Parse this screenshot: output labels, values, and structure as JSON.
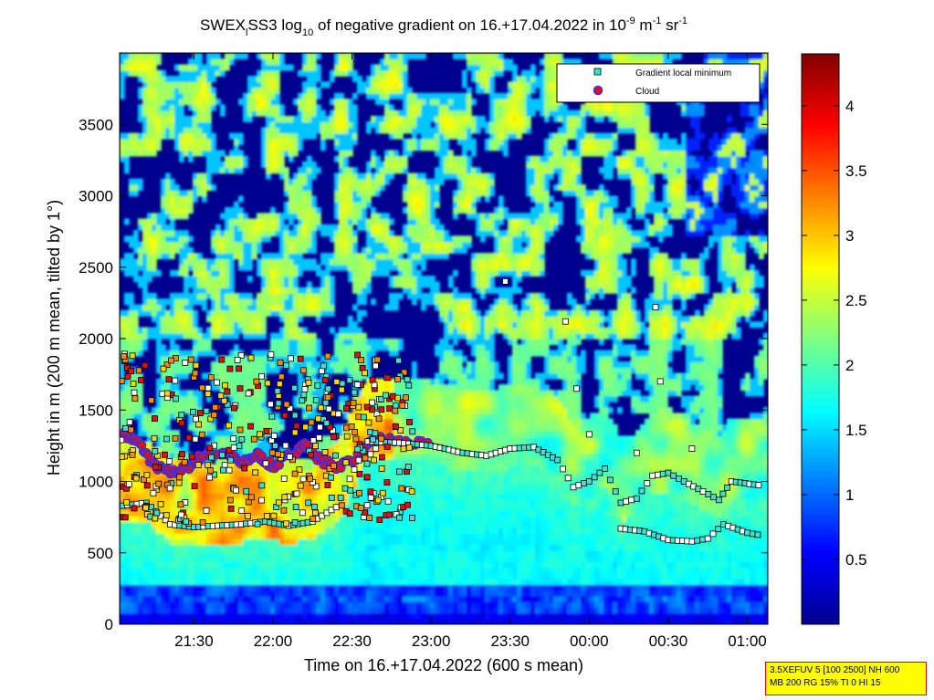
{
  "chart_data": {
    "type": "heatmap",
    "title": {
      "prefix": "SWEX",
      "sub": "l",
      "mid1": "SS3 log",
      "sub2": "10",
      "mid2": " of negative gradient on 16.+17.04.2022 in 10",
      "sup1": "-9",
      "mid3": " m",
      "sup2": "-1",
      "mid4": " sr",
      "sup3": "-1"
    },
    "xlabel": "Time on 16.+17.04.2022 (600 s mean)",
    "ylabel": "Height in m (200 m mean, tilted by 1°)",
    "x_ticks": [
      "21:30",
      "22:00",
      "22:30",
      "23:00",
      "23:30",
      "00:00",
      "00:30",
      "01:00"
    ],
    "x_tick_hours": [
      21.5,
      22.0,
      22.5,
      23.0,
      23.5,
      24.0,
      24.5,
      25.0
    ],
    "xlim_hours": [
      21.03,
      25.13
    ],
    "y_ticks": [
      "0",
      "500",
      "1000",
      "1500",
      "2000",
      "2500",
      "3000",
      "3500"
    ],
    "y_tick_values": [
      0,
      500,
      1000,
      1500,
      2000,
      2500,
      3000,
      3500
    ],
    "ylim": [
      0,
      4000
    ],
    "colorbar": {
      "ticks": [
        "0.5",
        "1",
        "1.5",
        "2",
        "2.5",
        "3",
        "3.5",
        "4"
      ],
      "tick_values": [
        0.5,
        1,
        1.5,
        2,
        2.5,
        3,
        3.5,
        4
      ],
      "range": [
        0,
        4.4
      ],
      "colormap": "jet"
    },
    "legend": {
      "placement": "top-right",
      "entries": [
        {
          "label": "Gradient local minimum",
          "marker": "square",
          "color": "#40e0d0"
        },
        {
          "label": "Cloud",
          "marker": "circle",
          "color": "#e01010"
        }
      ]
    },
    "gradient_minimum_track": [
      {
        "t": 21.05,
        "h": 830
      },
      {
        "t": 21.2,
        "h": 850
      },
      {
        "t": 21.35,
        "h": 700
      },
      {
        "t": 21.5,
        "h": 680
      },
      {
        "t": 21.65,
        "h": 690
      },
      {
        "t": 21.8,
        "h": 700
      },
      {
        "t": 21.95,
        "h": 720
      },
      {
        "t": 22.1,
        "h": 690
      },
      {
        "t": 22.25,
        "h": 720
      },
      {
        "t": 22.4,
        "h": 820
      },
      {
        "t": 22.6,
        "h": 1280
      },
      {
        "t": 22.8,
        "h": 1270
      },
      {
        "t": 23.0,
        "h": 1250
      },
      {
        "t": 23.2,
        "h": 1200
      },
      {
        "t": 23.35,
        "h": 1180
      },
      {
        "t": 23.5,
        "h": 1230
      },
      {
        "t": 23.65,
        "h": 1240
      },
      {
        "t": 23.8,
        "h": 1150
      },
      {
        "t": 23.9,
        "h": 960
      },
      {
        "t": 24.0,
        "h": 1000
      },
      {
        "t": 24.1,
        "h": 1090
      },
      {
        "t": 24.2,
        "h": 850
      },
      {
        "t": 24.3,
        "h": 880
      },
      {
        "t": 24.4,
        "h": 1040
      },
      {
        "t": 24.5,
        "h": 1060
      },
      {
        "t": 24.6,
        "h": 1000
      },
      {
        "t": 24.72,
        "h": 930
      },
      {
        "t": 24.82,
        "h": 870
      },
      {
        "t": 24.9,
        "h": 1000
      },
      {
        "t": 25.1,
        "h": 970
      }
    ],
    "gradient_minimum_lower_track": [
      {
        "t": 24.2,
        "h": 670
      },
      {
        "t": 24.35,
        "h": 650
      },
      {
        "t": 24.5,
        "h": 590
      },
      {
        "t": 24.65,
        "h": 580
      },
      {
        "t": 24.75,
        "h": 600
      },
      {
        "t": 24.85,
        "h": 700
      },
      {
        "t": 25.0,
        "h": 640
      },
      {
        "t": 25.1,
        "h": 620
      }
    ],
    "cloud_band": [
      {
        "t": 21.05,
        "h": 1330
      },
      {
        "t": 21.15,
        "h": 1270
      },
      {
        "t": 21.25,
        "h": 1110
      },
      {
        "t": 21.35,
        "h": 1060
      },
      {
        "t": 21.45,
        "h": 1090
      },
      {
        "t": 21.55,
        "h": 1180
      },
      {
        "t": 21.7,
        "h": 1210
      },
      {
        "t": 21.8,
        "h": 1120
      },
      {
        "t": 21.9,
        "h": 1190
      },
      {
        "t": 22.0,
        "h": 1100
      },
      {
        "t": 22.1,
        "h": 1180
      },
      {
        "t": 22.2,
        "h": 1260
      },
      {
        "t": 22.3,
        "h": 1150
      },
      {
        "t": 22.4,
        "h": 1100
      },
      {
        "t": 22.55,
        "h": 1180
      },
      {
        "t": 22.65,
        "h": 1300
      },
      {
        "t": 22.8,
        "h": 1280
      },
      {
        "t": 23.0,
        "h": 1250
      }
    ]
  },
  "info_box": {
    "line1": "3.5XEFUV 5 [100 2500] NH 600",
    "line2": "MB 200 RG 15% TI 0 HI 15"
  }
}
